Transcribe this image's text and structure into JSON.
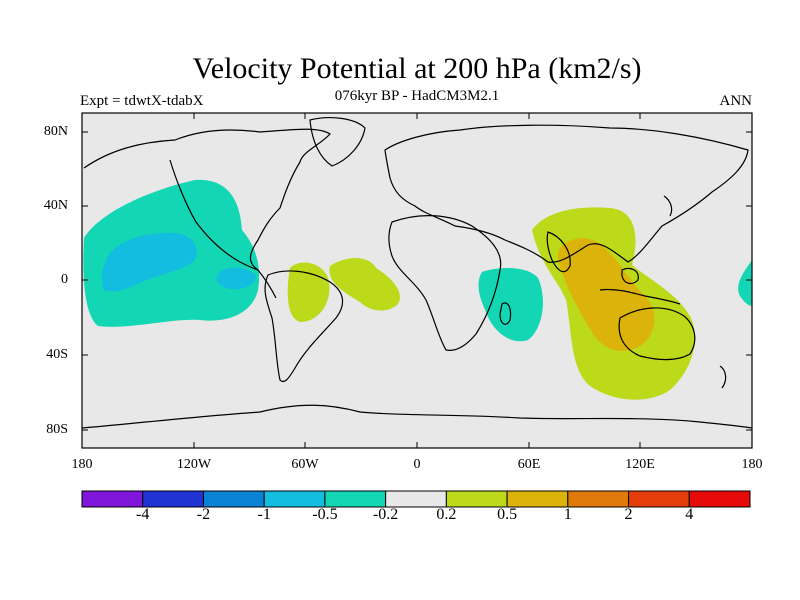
{
  "title": "Velocity Potential at 200 hPa (km2/s)",
  "subtitle": "076kyr BP - HadCM3M2.1",
  "experiment_label": "Expt = tdwtX-tdabX",
  "season_label": "ANN",
  "axes": {
    "y_ticks": [
      "80N",
      "40N",
      "0",
      "40S",
      "80S"
    ],
    "x_ticks": [
      "180",
      "120W",
      "60W",
      "0",
      "60E",
      "120E",
      "180"
    ]
  },
  "colorbar": {
    "labels": [
      "-4",
      "-2",
      "-1",
      "-0.5",
      "-0.2",
      "0.2",
      "0.5",
      "1",
      "2",
      "4"
    ],
    "colors": [
      "#7f16d9",
      "#2233d3",
      "#0a82d6",
      "#12bde0",
      "#12d6b4",
      "#e8e8e8",
      "#bcd91a",
      "#dcb30a",
      "#e07a0a",
      "#e23d0a",
      "#e60a0a"
    ]
  },
  "colors": {
    "land_line": "#000000",
    "background": "#e8e8e8"
  }
}
